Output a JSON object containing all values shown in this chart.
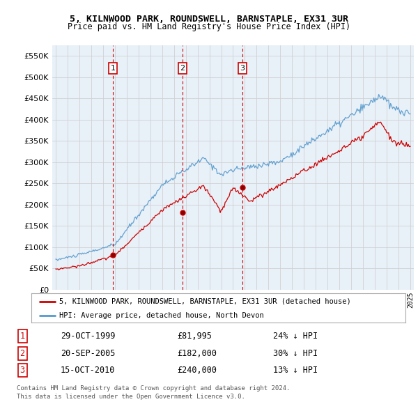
{
  "title1": "5, KILNWOOD PARK, ROUNDSWELL, BARNSTAPLE, EX31 3UR",
  "title2": "Price paid vs. HM Land Registry's House Price Index (HPI)",
  "ylim": [
    0,
    575000
  ],
  "yticks": [
    0,
    50000,
    100000,
    150000,
    200000,
    250000,
    300000,
    350000,
    400000,
    450000,
    500000,
    550000
  ],
  "ytick_labels": [
    "£0",
    "£50K",
    "£100K",
    "£150K",
    "£200K",
    "£250K",
    "£300K",
    "£350K",
    "£400K",
    "£450K",
    "£500K",
    "£550K"
  ],
  "xlim_start": 1994.7,
  "xlim_end": 2025.3,
  "sale_dates": [
    1999.83,
    2005.72,
    2010.79
  ],
  "sale_prices": [
    81995,
    182000,
    240000
  ],
  "sale_labels": [
    "1",
    "2",
    "3"
  ],
  "legend_line1": "5, KILNWOOD PARK, ROUNDSWELL, BARNSTAPLE, EX31 3UR (detached house)",
  "legend_line2": "HPI: Average price, detached house, North Devon",
  "table_rows": [
    [
      "1",
      "29-OCT-1999",
      "£81,995",
      "24% ↓ HPI"
    ],
    [
      "2",
      "20-SEP-2005",
      "£182,000",
      "30% ↓ HPI"
    ],
    [
      "3",
      "15-OCT-2010",
      "£240,000",
      "13% ↓ HPI"
    ]
  ],
  "footer1": "Contains HM Land Registry data © Crown copyright and database right 2024.",
  "footer2": "This data is licensed under the Open Government Licence v3.0.",
  "color_red": "#cc0000",
  "color_blue": "#5599cc",
  "color_blue_fill": "#ddeeff",
  "color_grid": "#cccccc",
  "color_bg": "#ffffff",
  "chart_bg": "#e8f0f8"
}
